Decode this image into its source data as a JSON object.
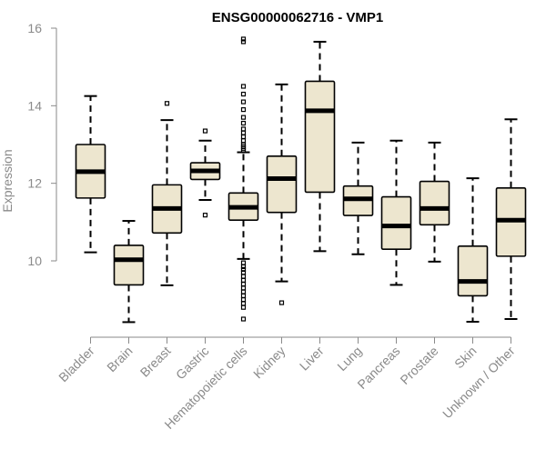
{
  "chart_data": {
    "type": "boxplot",
    "title": "ENSG00000062716 - VMP1",
    "xlabel": "",
    "ylabel": "Expression",
    "ylim": [
      8.2,
      16
    ],
    "yticks": [
      10,
      12,
      14,
      16
    ],
    "categories": [
      "Bladder",
      "Brain",
      "Breast",
      "Gastric",
      "Hematopoietic cells",
      "Kidney",
      "Liver",
      "Lung",
      "Pancreas",
      "Prostate",
      "Skin",
      "Unknown / Other"
    ],
    "boxes": [
      {
        "whisker_low": 10.22,
        "q1": 11.62,
        "median": 12.3,
        "q3": 13.0,
        "whisker_high": 14.25,
        "outliers": []
      },
      {
        "whisker_low": 8.42,
        "q1": 9.38,
        "median": 10.03,
        "q3": 10.4,
        "whisker_high": 11.03,
        "outliers": []
      },
      {
        "whisker_low": 9.37,
        "q1": 10.72,
        "median": 11.35,
        "q3": 11.96,
        "whisker_high": 13.63,
        "outliers": [
          14.06
        ]
      },
      {
        "whisker_low": 11.57,
        "q1": 12.1,
        "median": 12.32,
        "q3": 12.53,
        "whisker_high": 13.1,
        "outliers": [
          11.18,
          13.35
        ]
      },
      {
        "whisker_low": 10.05,
        "q1": 11.05,
        "median": 11.38,
        "q3": 11.75,
        "whisker_high": 12.8,
        "outliers": [
          15.72,
          15.65,
          14.5,
          14.3,
          14.1,
          13.9,
          13.7,
          13.55,
          13.4,
          13.3,
          13.2,
          13.1,
          13.0,
          12.95,
          12.9,
          12.85,
          9.95,
          9.85,
          9.78,
          9.7,
          9.6,
          9.5,
          9.4,
          9.3,
          9.2,
          9.1,
          9.0,
          8.9,
          8.8,
          8.5
        ]
      },
      {
        "whisker_low": 9.47,
        "q1": 11.25,
        "median": 12.12,
        "q3": 12.7,
        "whisker_high": 14.55,
        "outliers": [
          8.92
        ]
      },
      {
        "whisker_low": 10.25,
        "q1": 11.77,
        "median": 13.87,
        "q3": 14.63,
        "whisker_high": 15.65,
        "outliers": []
      },
      {
        "whisker_low": 10.17,
        "q1": 11.17,
        "median": 11.6,
        "q3": 11.93,
        "whisker_high": 13.05,
        "outliers": []
      },
      {
        "whisker_low": 9.38,
        "q1": 10.3,
        "median": 10.9,
        "q3": 11.65,
        "whisker_high": 13.1,
        "outliers": []
      },
      {
        "whisker_low": 9.98,
        "q1": 10.93,
        "median": 11.35,
        "q3": 12.05,
        "whisker_high": 13.05,
        "outliers": []
      },
      {
        "whisker_low": 8.43,
        "q1": 9.1,
        "median": 9.47,
        "q3": 10.38,
        "whisker_high": 12.13,
        "outliers": []
      },
      {
        "whisker_low": 8.5,
        "q1": 10.12,
        "median": 11.05,
        "q3": 11.88,
        "whisker_high": 13.65,
        "outliers": []
      }
    ],
    "box_fill": "#ede6cf",
    "box_stroke": "#000000",
    "axis_color": "#8a8a8a",
    "grid": false,
    "legend": "none"
  }
}
